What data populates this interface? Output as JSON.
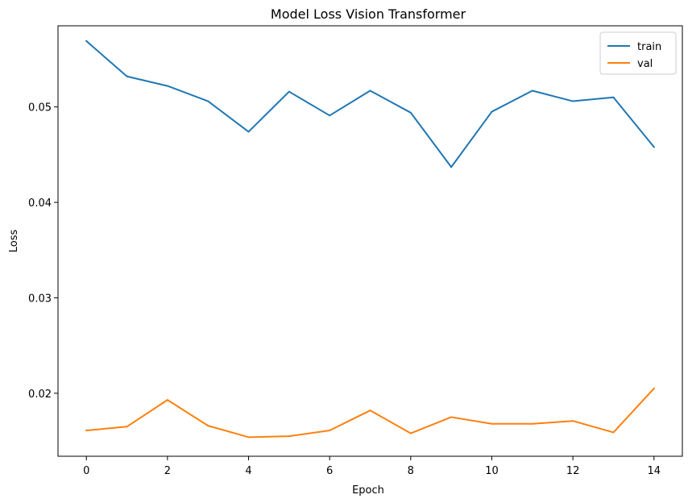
{
  "chart_data": {
    "type": "line",
    "title": "Model Loss Vision Transformer",
    "xlabel": "Epoch",
    "ylabel": "Loss",
    "x": [
      0,
      1,
      2,
      3,
      4,
      5,
      6,
      7,
      8,
      9,
      10,
      11,
      12,
      13,
      14
    ],
    "xlim": [
      -0.7,
      14.7
    ],
    "ylim": [
      0.0134,
      0.0585
    ],
    "xticks": [
      0,
      2,
      4,
      6,
      8,
      10,
      12,
      14
    ],
    "xtick_labels": [
      "0",
      "2",
      "4",
      "6",
      "8",
      "10",
      "12",
      "14"
    ],
    "yticks": [
      0.02,
      0.03,
      0.04,
      0.05
    ],
    "ytick_labels": [
      "0.02",
      "0.03",
      "0.04",
      "0.05"
    ],
    "grid": false,
    "legend_position": "top-right",
    "series": [
      {
        "name": "train",
        "color": "#1f77b4",
        "values": [
          0.0569,
          0.0532,
          0.0522,
          0.0506,
          0.0474,
          0.0516,
          0.0491,
          0.0517,
          0.0494,
          0.0437,
          0.0495,
          0.0517,
          0.0506,
          0.051,
          0.0458
        ]
      },
      {
        "name": "val",
        "color": "#ff7f0e",
        "values": [
          0.0161,
          0.0165,
          0.0193,
          0.0166,
          0.0154,
          0.0155,
          0.0161,
          0.0182,
          0.0158,
          0.0175,
          0.0168,
          0.0168,
          0.0171,
          0.0159,
          0.0205
        ]
      }
    ]
  }
}
